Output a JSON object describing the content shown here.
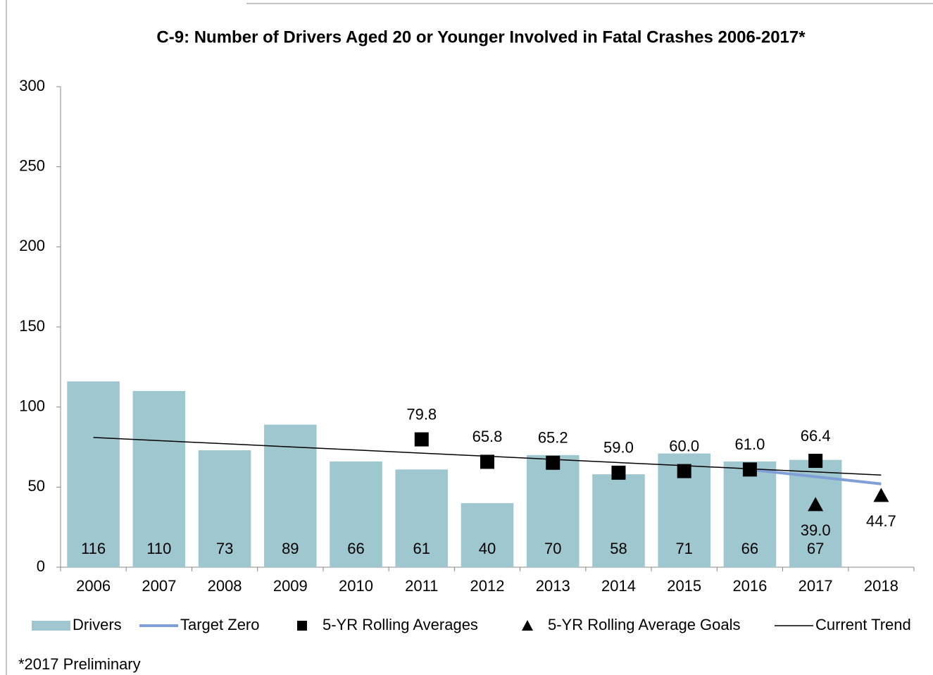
{
  "chart_data": {
    "type": "bar",
    "title": "C-9: Number of Drivers Aged 20 or Younger Involved in Fatal Crashes 2006-2017*",
    "footnote": "*2017 Preliminary",
    "categories": [
      "2006",
      "2007",
      "2008",
      "2009",
      "2010",
      "2011",
      "2012",
      "2013",
      "2014",
      "2015",
      "2016",
      "2017",
      "2018"
    ],
    "ylim": [
      0,
      300
    ],
    "yticks": [
      0,
      50,
      100,
      150,
      200,
      250,
      300
    ],
    "series": [
      {
        "name": "Drivers",
        "type": "bar",
        "color": "#9fc7cf",
        "label_position": "inside-base",
        "values": [
          116,
          110,
          73,
          89,
          66,
          61,
          40,
          70,
          58,
          71,
          66,
          67,
          null
        ]
      },
      {
        "name": "Target Zero",
        "type": "line",
        "color": "#7f9fd6",
        "line_width": 4,
        "values": [
          null,
          null,
          null,
          null,
          null,
          null,
          null,
          null,
          null,
          null,
          61,
          56.5,
          52
        ]
      },
      {
        "name": "5-YR Rolling Averages",
        "type": "scatter",
        "marker": "square",
        "color": "#000000",
        "label_position": "above",
        "values": [
          null,
          null,
          null,
          null,
          null,
          79.8,
          65.8,
          65.2,
          59.0,
          60.0,
          61.0,
          66.4,
          null
        ],
        "value_labels": [
          null,
          null,
          null,
          null,
          null,
          "79.8",
          "65.8",
          "65.2",
          "59.0",
          "60.0",
          "61.0",
          "66.4",
          null
        ]
      },
      {
        "name": "5-YR Rolling Average Goals",
        "type": "scatter",
        "marker": "triangle",
        "color": "#000000",
        "label_position": "below",
        "values": [
          null,
          null,
          null,
          null,
          null,
          null,
          null,
          null,
          null,
          null,
          null,
          39.0,
          44.7
        ],
        "value_labels": [
          null,
          null,
          null,
          null,
          null,
          null,
          null,
          null,
          null,
          null,
          null,
          "39.0",
          "44.7"
        ]
      },
      {
        "name": "Current Trend",
        "type": "line",
        "color": "#000000",
        "line_width": 1.5,
        "values": [
          81,
          79.0,
          77.1,
          75.1,
          73.2,
          71.2,
          69.3,
          67.3,
          65.3,
          63.4,
          61.4,
          59.5,
          57.5
        ]
      }
    ]
  }
}
